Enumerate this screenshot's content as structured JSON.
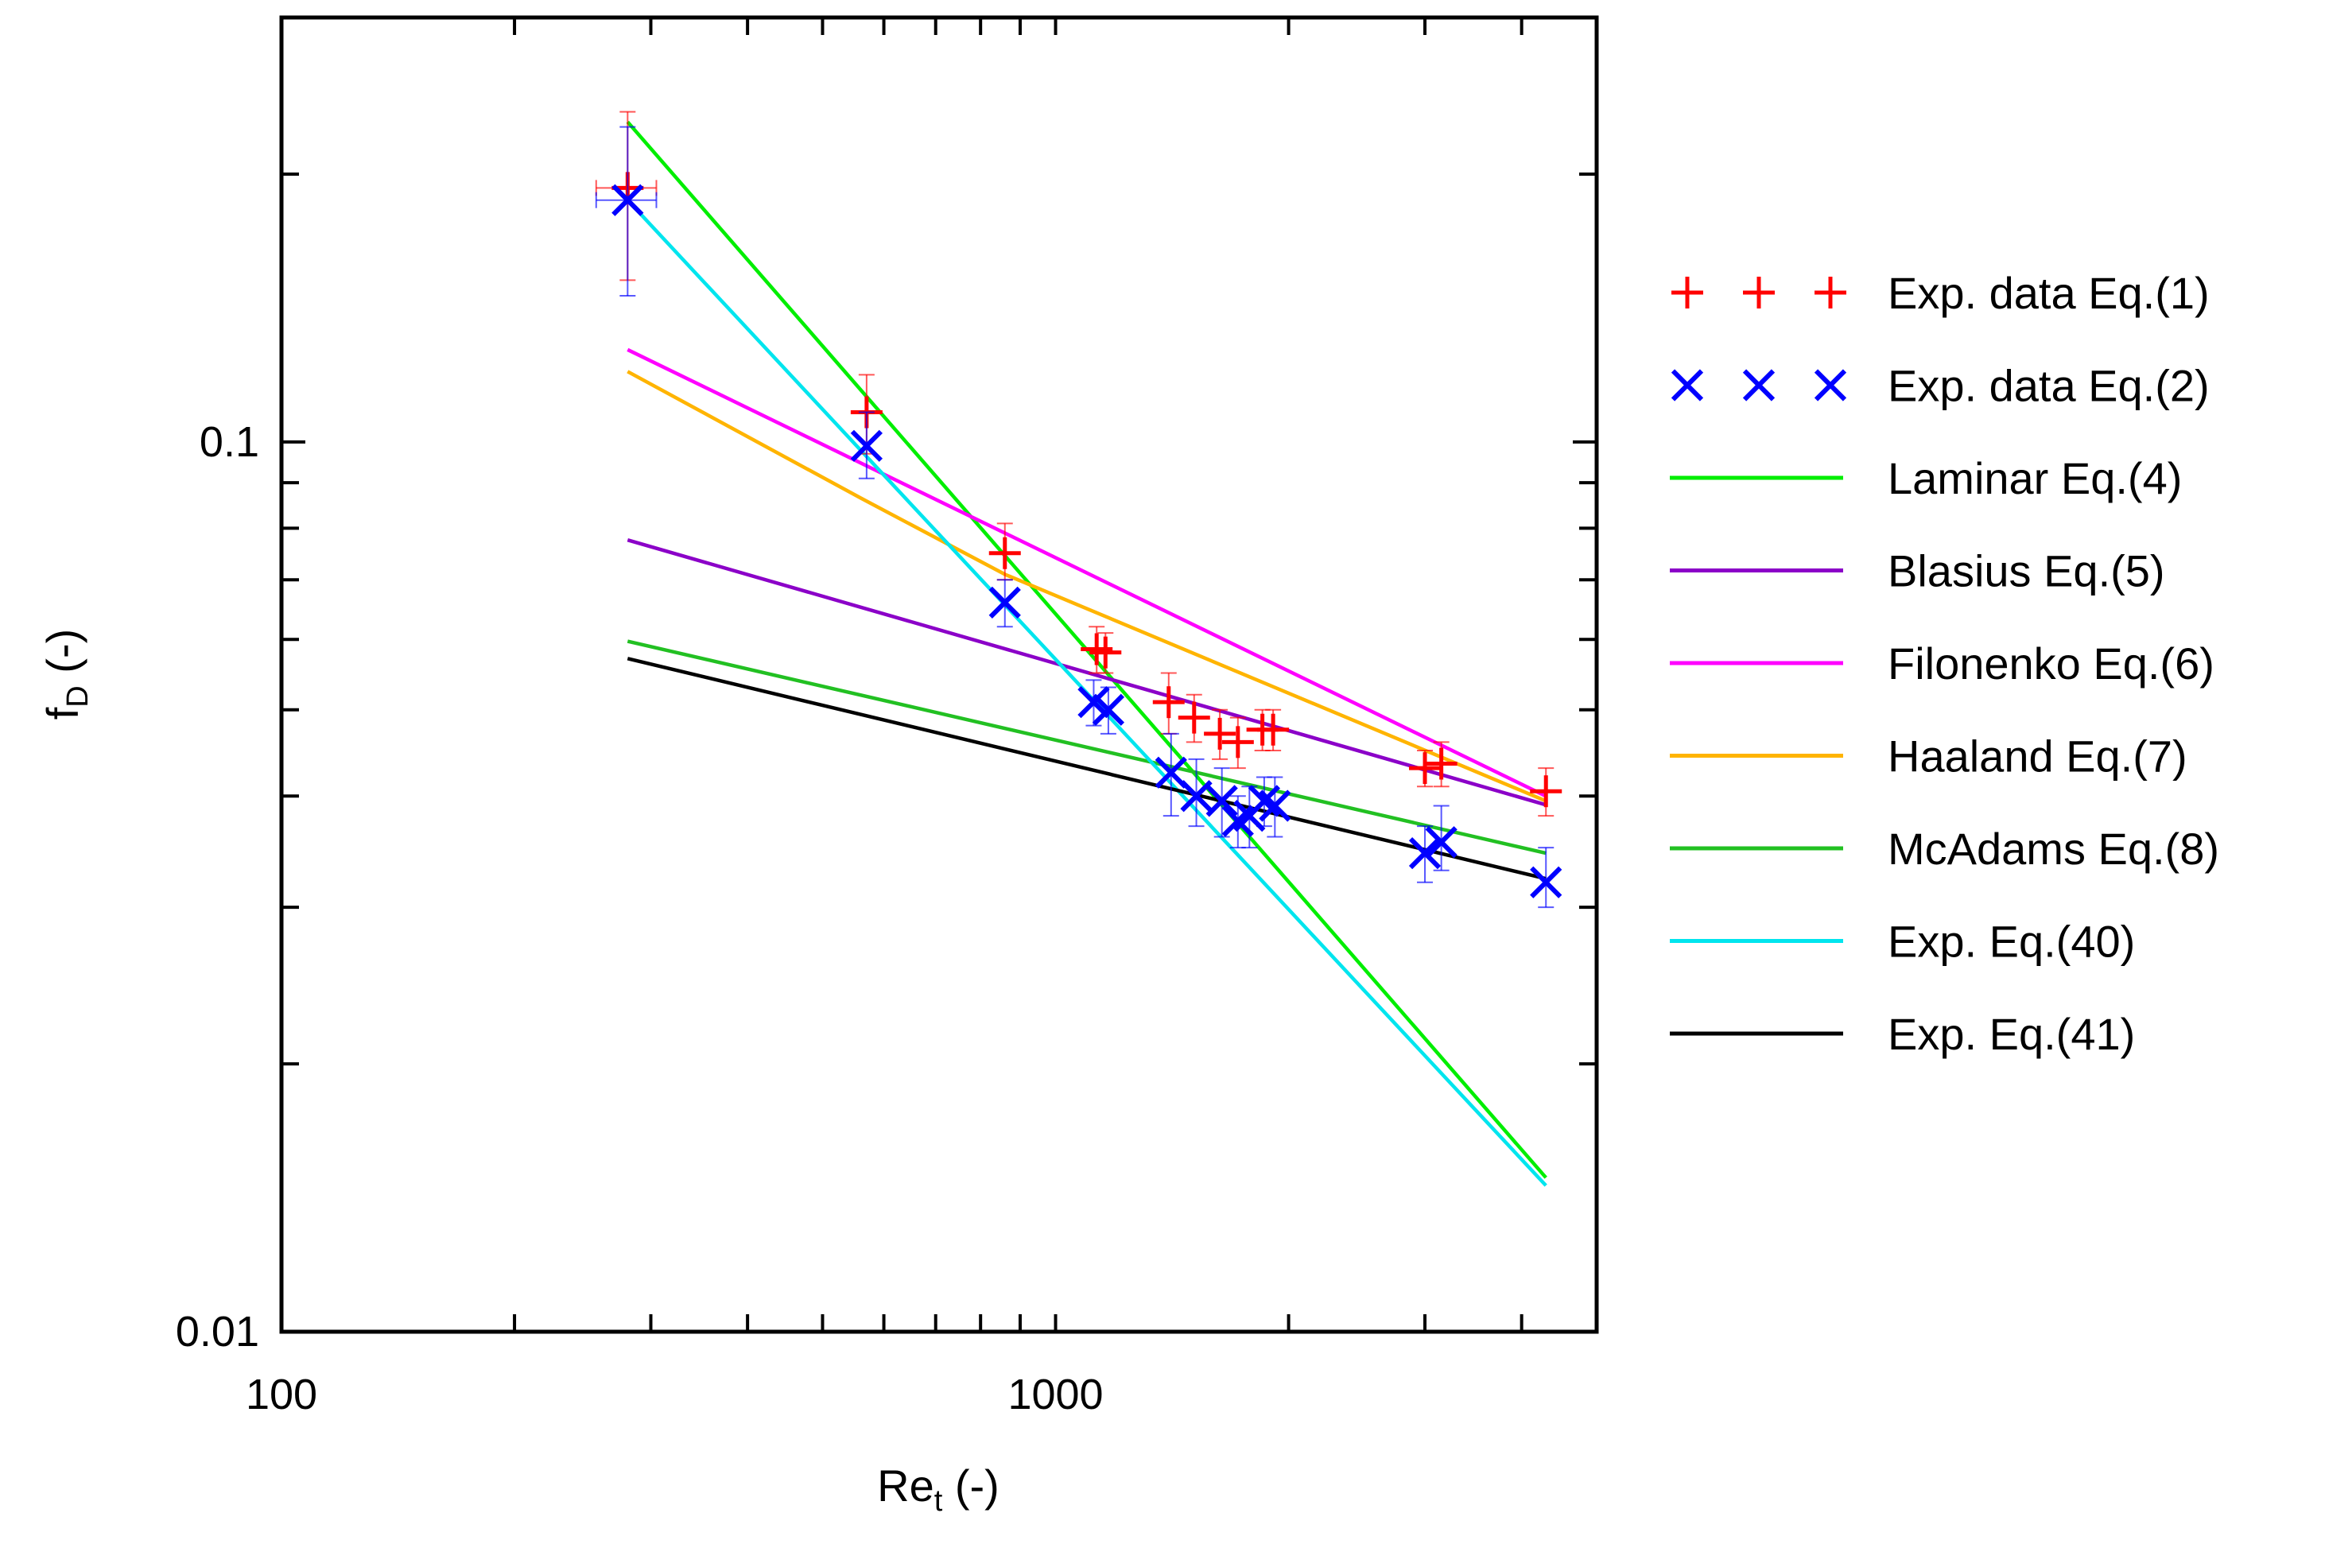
{
  "chart_data": {
    "type": "scatter",
    "x_scale": "log",
    "y_scale": "log",
    "xlim": [
      100,
      5000
    ],
    "ylim": [
      0.01,
      0.3
    ],
    "x_major_ticks": [
      100,
      1000
    ],
    "x_major_tick_labels": [
      "100",
      "1000"
    ],
    "x_minor_ticks": [
      200,
      300,
      400,
      500,
      600,
      700,
      800,
      900,
      2000,
      3000,
      4000
    ],
    "y_major_ticks": [
      0.01,
      0.1
    ],
    "y_major_tick_labels": [
      "0.01",
      "0.1"
    ],
    "y_minor_ticks": [
      0.02,
      0.03,
      0.04,
      0.05,
      0.06,
      0.07,
      0.08,
      0.09,
      0.2
    ],
    "xlabel": {
      "main": "Re",
      "sub": "t",
      "suffix": " (-)"
    },
    "ylabel": {
      "main": "f",
      "sub": "D",
      "suffix": " (-)"
    },
    "legend_position": "right-outside",
    "legend": [
      "Exp. data Eq.(1)",
      "Exp. data Eq.(2)",
      "Laminar Eq.(4)",
      "Blasius Eq.(5)",
      "Filonenko Eq.(6)",
      "Haaland Eq.(7)",
      "McAdams Eq.(8)",
      "Exp. Eq.(40)",
      "Exp. Eq.(41)"
    ],
    "series": [
      {
        "name": "Exp. data Eq.(1)",
        "kind": "points",
        "marker": "plus",
        "color": "#ff0000",
        "points": [
          {
            "x": 280,
            "y": 0.193,
            "ylo": 0.152,
            "yhi": 0.235,
            "xlo": 255,
            "xhi": 305
          },
          {
            "x": 570,
            "y": 0.108,
            "ylo": 0.097,
            "yhi": 0.119
          },
          {
            "x": 860,
            "y": 0.075,
            "ylo": 0.07,
            "yhi": 0.081
          },
          {
            "x": 1130,
            "y": 0.0585,
            "ylo": 0.055,
            "yhi": 0.062
          },
          {
            "x": 1160,
            "y": 0.058,
            "ylo": 0.055,
            "yhi": 0.061
          },
          {
            "x": 1400,
            "y": 0.051,
            "ylo": 0.047,
            "yhi": 0.055
          },
          {
            "x": 1510,
            "y": 0.049,
            "ylo": 0.046,
            "yhi": 0.052
          },
          {
            "x": 1630,
            "y": 0.047,
            "ylo": 0.044,
            "yhi": 0.05
          },
          {
            "x": 1720,
            "y": 0.046,
            "ylo": 0.043,
            "yhi": 0.049
          },
          {
            "x": 1850,
            "y": 0.0475,
            "ylo": 0.045,
            "yhi": 0.05
          },
          {
            "x": 1910,
            "y": 0.0475,
            "ylo": 0.045,
            "yhi": 0.05
          },
          {
            "x": 3000,
            "y": 0.043,
            "ylo": 0.041,
            "yhi": 0.045
          },
          {
            "x": 3150,
            "y": 0.0435,
            "ylo": 0.041,
            "yhi": 0.046
          },
          {
            "x": 4300,
            "y": 0.0405,
            "ylo": 0.038,
            "yhi": 0.043
          }
        ]
      },
      {
        "name": "Exp. data Eq.(2)",
        "kind": "points",
        "marker": "cross",
        "color": "#0000ff",
        "points": [
          {
            "x": 280,
            "y": 0.187,
            "ylo": 0.146,
            "yhi": 0.226,
            "xlo": 255,
            "xhi": 305
          },
          {
            "x": 570,
            "y": 0.099,
            "ylo": 0.091,
            "yhi": 0.108
          },
          {
            "x": 860,
            "y": 0.066,
            "ylo": 0.062,
            "yhi": 0.07
          },
          {
            "x": 1120,
            "y": 0.051,
            "ylo": 0.048,
            "yhi": 0.054
          },
          {
            "x": 1170,
            "y": 0.05,
            "ylo": 0.047,
            "yhi": 0.053
          },
          {
            "x": 1410,
            "y": 0.0425,
            "ylo": 0.038,
            "yhi": 0.047
          },
          {
            "x": 1520,
            "y": 0.04,
            "ylo": 0.037,
            "yhi": 0.044
          },
          {
            "x": 1640,
            "y": 0.0395,
            "ylo": 0.036,
            "yhi": 0.043
          },
          {
            "x": 1720,
            "y": 0.0375,
            "ylo": 0.035,
            "yhi": 0.04
          },
          {
            "x": 1780,
            "y": 0.038,
            "ylo": 0.035,
            "yhi": 0.041
          },
          {
            "x": 1860,
            "y": 0.0395,
            "ylo": 0.037,
            "yhi": 0.042
          },
          {
            "x": 1920,
            "y": 0.039,
            "ylo": 0.036,
            "yhi": 0.042
          },
          {
            "x": 3000,
            "y": 0.0345,
            "ylo": 0.032,
            "yhi": 0.037
          },
          {
            "x": 3150,
            "y": 0.0355,
            "ylo": 0.033,
            "yhi": 0.039
          },
          {
            "x": 4300,
            "y": 0.032,
            "ylo": 0.03,
            "yhi": 0.035
          }
        ]
      },
      {
        "name": "Laminar Eq.(4)",
        "kind": "line",
        "color": "#00ee00",
        "points": [
          {
            "x": 280,
            "y": 0.229
          },
          {
            "x": 4300,
            "y": 0.0149
          }
        ]
      },
      {
        "name": "Blasius Eq.(5)",
        "kind": "line",
        "color": "#8b00c8",
        "points": [
          {
            "x": 280,
            "y": 0.0776
          },
          {
            "x": 4300,
            "y": 0.0391
          }
        ]
      },
      {
        "name": "Filonenko Eq.(6)",
        "kind": "line",
        "color": "#ff00ff",
        "points": [
          {
            "x": 280,
            "y": 0.127
          },
          {
            "x": 4300,
            "y": 0.04
          }
        ]
      },
      {
        "name": "Haaland Eq.(7)",
        "kind": "line",
        "color": "#ffb400",
        "points": [
          {
            "x": 280,
            "y": 0.12
          },
          {
            "x": 560,
            "y": 0.0865
          },
          {
            "x": 860,
            "y": 0.071
          },
          {
            "x": 4300,
            "y": 0.0395
          }
        ]
      },
      {
        "name": "McAdams Eq.(8)",
        "kind": "line",
        "color": "#22c022",
        "points": [
          {
            "x": 280,
            "y": 0.0597
          },
          {
            "x": 4300,
            "y": 0.0345
          }
        ]
      },
      {
        "name": "Exp. Eq.(40)",
        "kind": "line",
        "color": "#00e5ee",
        "points": [
          {
            "x": 280,
            "y": 0.187
          },
          {
            "x": 4300,
            "y": 0.0146
          }
        ]
      },
      {
        "name": "Exp. Eq.(41)",
        "kind": "line",
        "color": "#000000",
        "points": [
          {
            "x": 280,
            "y": 0.0571
          },
          {
            "x": 4300,
            "y": 0.0323
          }
        ]
      }
    ]
  }
}
